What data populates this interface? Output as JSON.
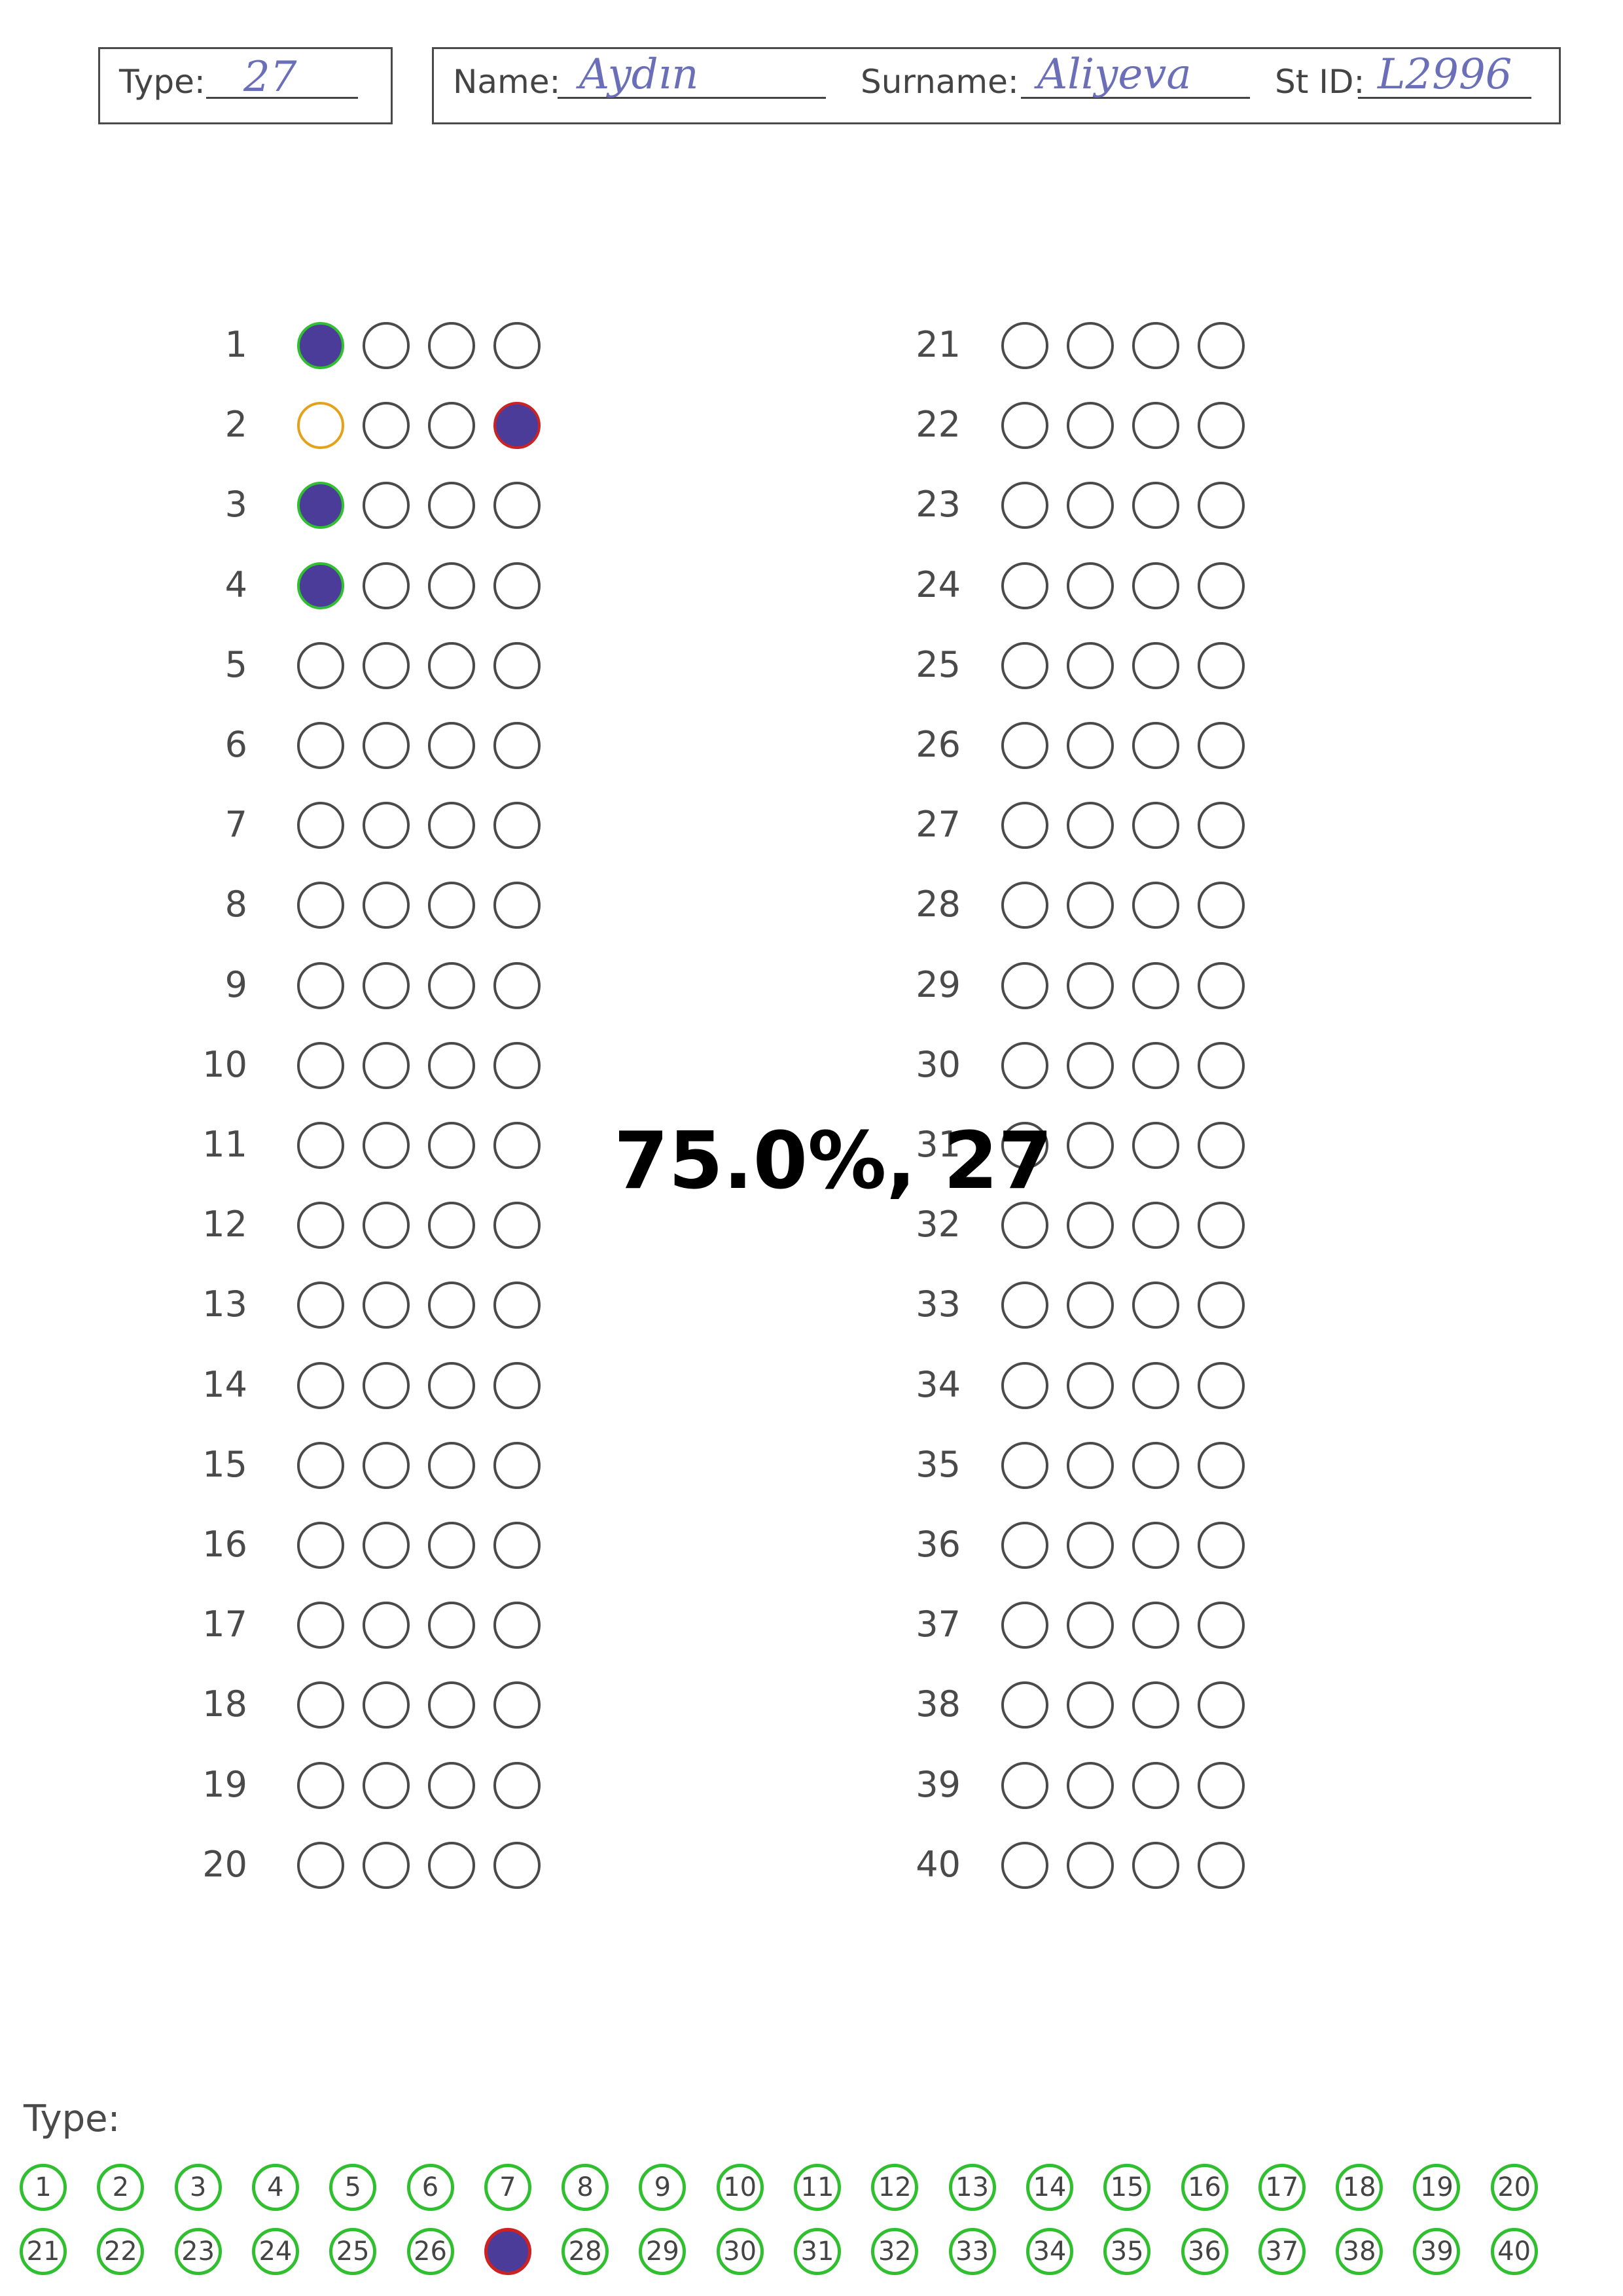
{
  "header": {
    "type_label": "Type:",
    "type_value": "27",
    "name_label": "Name:",
    "name_value": "Aydın",
    "surname_label": "Surname:",
    "surname_value": "Aliyeva",
    "stid_label": "St ID:",
    "stid_value": "L2996"
  },
  "questions": {
    "left": [
      "1",
      "2",
      "3",
      "4",
      "5",
      "6",
      "7",
      "8",
      "9",
      "10",
      "11",
      "12",
      "13",
      "14",
      "15",
      "16",
      "17",
      "18",
      "19",
      "20"
    ],
    "right": [
      "21",
      "22",
      "23",
      "24",
      "25",
      "26",
      "27",
      "28",
      "29",
      "30",
      "31",
      "32",
      "33",
      "34",
      "35",
      "36",
      "37",
      "38",
      "39",
      "40"
    ]
  },
  "answers": [
    {
      "q": 1,
      "marked": [
        0
      ],
      "correct": [
        0
      ],
      "wrong": [],
      "missed": []
    },
    {
      "q": 2,
      "marked": [
        3
      ],
      "correct": [],
      "wrong": [
        3
      ],
      "missed": [
        0
      ]
    },
    {
      "q": 3,
      "marked": [
        0
      ],
      "correct": [
        0
      ],
      "wrong": [],
      "missed": []
    },
    {
      "q": 4,
      "marked": [
        0
      ],
      "correct": [
        0
      ],
      "wrong": [],
      "missed": []
    }
  ],
  "score_text": "75.0%, 27",
  "type_section": {
    "title": "Type:",
    "options": [
      "1",
      "2",
      "3",
      "4",
      "5",
      "6",
      "7",
      "8",
      "9",
      "10",
      "11",
      "12",
      "13",
      "14",
      "15",
      "16",
      "17",
      "18",
      "19",
      "20",
      "21",
      "22",
      "23",
      "24",
      "25",
      "26",
      "27",
      "28",
      "29",
      "30",
      "31",
      "32",
      "33",
      "34",
      "35",
      "36",
      "37",
      "38",
      "39",
      "40"
    ],
    "selected": "27"
  },
  "colors": {
    "mark_fill": "#4b3c9a",
    "correct_ring": "#2fbf2f",
    "missed_ring": "#e3a21a",
    "wrong_ring": "#cc2222",
    "handwriting": "#6a6fb8"
  }
}
